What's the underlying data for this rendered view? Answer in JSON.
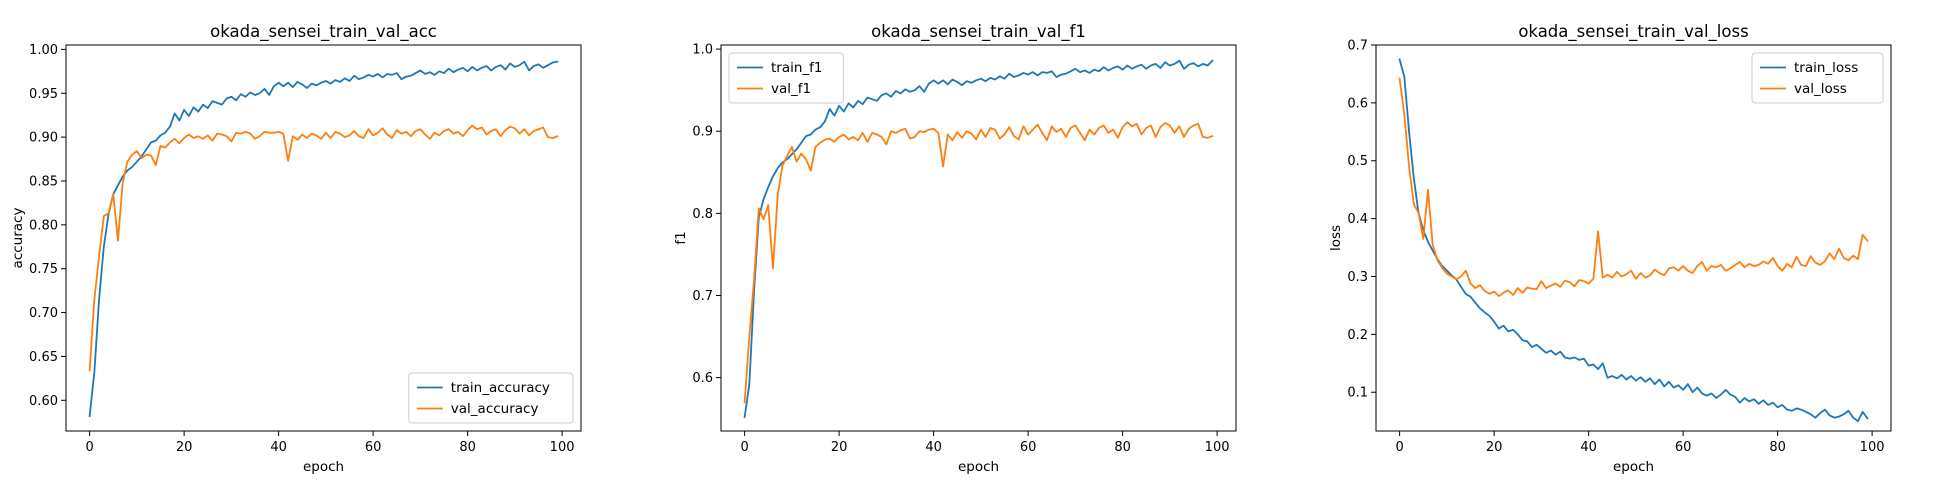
{
  "chart_data": [
    {
      "type": "line",
      "title": "okada_sensei_train_val_acc",
      "xlabel": "epoch",
      "ylabel": "accuracy",
      "xlim": [
        -5,
        104
      ],
      "ylim": [
        0.565,
        1.005
      ],
      "xticks": [
        "0",
        "20",
        "40",
        "60",
        "80",
        "100"
      ],
      "yticks": [
        "0.60",
        "0.65",
        "0.70",
        "0.75",
        "0.80",
        "0.85",
        "0.90",
        "0.95",
        "1.00"
      ],
      "legend_position": "lower-right",
      "grid": false,
      "x": [
        0,
        1,
        2,
        3,
        4,
        5,
        6,
        7,
        8,
        9,
        10,
        11,
        12,
        13,
        14,
        15,
        16,
        17,
        18,
        19,
        20,
        21,
        22,
        23,
        24,
        25,
        26,
        27,
        28,
        29,
        30,
        31,
        32,
        33,
        34,
        35,
        36,
        37,
        38,
        39,
        40,
        41,
        42,
        43,
        44,
        45,
        46,
        47,
        48,
        49,
        50,
        51,
        52,
        53,
        54,
        55,
        56,
        57,
        58,
        59,
        60,
        61,
        62,
        63,
        64,
        65,
        66,
        67,
        68,
        69,
        70,
        71,
        72,
        73,
        74,
        75,
        76,
        77,
        78,
        79,
        80,
        81,
        82,
        83,
        84,
        85,
        86,
        87,
        88,
        89,
        90,
        91,
        92,
        93,
        94,
        95,
        96,
        97,
        98,
        99
      ],
      "series": [
        {
          "name": "train_accuracy",
          "color": "#1f77b4",
          "values": [
            0.582,
            0.632,
            0.715,
            0.775,
            0.812,
            0.835,
            0.845,
            0.855,
            0.862,
            0.866,
            0.872,
            0.878,
            0.886,
            0.894,
            0.896,
            0.902,
            0.905,
            0.912,
            0.927,
            0.919,
            0.931,
            0.924,
            0.934,
            0.929,
            0.937,
            0.933,
            0.941,
            0.939,
            0.937,
            0.944,
            0.946,
            0.942,
            0.949,
            0.946,
            0.951,
            0.948,
            0.95,
            0.955,
            0.948,
            0.958,
            0.962,
            0.958,
            0.962,
            0.957,
            0.963,
            0.96,
            0.956,
            0.961,
            0.959,
            0.962,
            0.964,
            0.961,
            0.965,
            0.963,
            0.967,
            0.964,
            0.97,
            0.966,
            0.968,
            0.971,
            0.969,
            0.972,
            0.968,
            0.972,
            0.971,
            0.973,
            0.966,
            0.969,
            0.97,
            0.973,
            0.976,
            0.972,
            0.974,
            0.971,
            0.975,
            0.973,
            0.978,
            0.974,
            0.977,
            0.979,
            0.975,
            0.98,
            0.976,
            0.979,
            0.981,
            0.976,
            0.98,
            0.982,
            0.977,
            0.984,
            0.98,
            0.982,
            0.986,
            0.976,
            0.981,
            0.983,
            0.979,
            0.982,
            0.985,
            0.986
          ]
        },
        {
          "name": "val_accuracy",
          "color": "#ff7f0e",
          "values": [
            0.634,
            0.715,
            0.764,
            0.81,
            0.813,
            0.835,
            0.782,
            0.848,
            0.872,
            0.88,
            0.884,
            0.876,
            0.88,
            0.879,
            0.868,
            0.89,
            0.888,
            0.894,
            0.898,
            0.893,
            0.899,
            0.903,
            0.899,
            0.901,
            0.898,
            0.902,
            0.896,
            0.904,
            0.903,
            0.901,
            0.895,
            0.905,
            0.904,
            0.906,
            0.904,
            0.898,
            0.901,
            0.906,
            0.905,
            0.905,
            0.906,
            0.904,
            0.873,
            0.901,
            0.897,
            0.903,
            0.899,
            0.904,
            0.902,
            0.898,
            0.905,
            0.899,
            0.906,
            0.904,
            0.9,
            0.902,
            0.907,
            0.901,
            0.899,
            0.909,
            0.902,
            0.905,
            0.91,
            0.903,
            0.899,
            0.908,
            0.904,
            0.906,
            0.901,
            0.907,
            0.909,
            0.903,
            0.898,
            0.905,
            0.902,
            0.907,
            0.909,
            0.904,
            0.906,
            0.901,
            0.908,
            0.913,
            0.909,
            0.911,
            0.903,
            0.907,
            0.909,
            0.901,
            0.908,
            0.912,
            0.91,
            0.904,
            0.909,
            0.902,
            0.907,
            0.909,
            0.911,
            0.9,
            0.899,
            0.901
          ]
        }
      ]
    },
    {
      "type": "line",
      "title": "okada_sensei_train_val_f1",
      "xlabel": "epoch",
      "ylabel": "f1",
      "xlim": [
        -5,
        104
      ],
      "ylim": [
        0.535,
        1.005
      ],
      "xticks": [
        "0",
        "20",
        "40",
        "60",
        "80",
        "100"
      ],
      "yticks": [
        "0.6",
        "0.7",
        "0.8",
        "0.9",
        "1.0"
      ],
      "legend_position": "upper-left",
      "grid": false,
      "x": [
        0,
        1,
        2,
        3,
        4,
        5,
        6,
        7,
        8,
        9,
        10,
        11,
        12,
        13,
        14,
        15,
        16,
        17,
        18,
        19,
        20,
        21,
        22,
        23,
        24,
        25,
        26,
        27,
        28,
        29,
        30,
        31,
        32,
        33,
        34,
        35,
        36,
        37,
        38,
        39,
        40,
        41,
        42,
        43,
        44,
        45,
        46,
        47,
        48,
        49,
        50,
        51,
        52,
        53,
        54,
        55,
        56,
        57,
        58,
        59,
        60,
        61,
        62,
        63,
        64,
        65,
        66,
        67,
        68,
        69,
        70,
        71,
        72,
        73,
        74,
        75,
        76,
        77,
        78,
        79,
        80,
        81,
        82,
        83,
        84,
        85,
        86,
        87,
        88,
        89,
        90,
        91,
        92,
        93,
        94,
        95,
        96,
        97,
        98,
        99
      ],
      "series": [
        {
          "name": "train_f1",
          "color": "#1f77b4",
          "values": [
            0.552,
            0.592,
            0.706,
            0.795,
            0.817,
            0.832,
            0.845,
            0.855,
            0.862,
            0.866,
            0.872,
            0.878,
            0.886,
            0.894,
            0.896,
            0.902,
            0.905,
            0.912,
            0.927,
            0.919,
            0.931,
            0.924,
            0.934,
            0.929,
            0.937,
            0.933,
            0.941,
            0.939,
            0.937,
            0.944,
            0.946,
            0.942,
            0.949,
            0.946,
            0.951,
            0.948,
            0.95,
            0.955,
            0.948,
            0.958,
            0.962,
            0.958,
            0.962,
            0.957,
            0.963,
            0.96,
            0.956,
            0.961,
            0.959,
            0.962,
            0.964,
            0.961,
            0.965,
            0.963,
            0.967,
            0.964,
            0.97,
            0.966,
            0.968,
            0.971,
            0.969,
            0.972,
            0.968,
            0.972,
            0.971,
            0.973,
            0.966,
            0.969,
            0.97,
            0.973,
            0.976,
            0.972,
            0.974,
            0.971,
            0.975,
            0.973,
            0.978,
            0.974,
            0.977,
            0.979,
            0.975,
            0.98,
            0.976,
            0.979,
            0.981,
            0.976,
            0.98,
            0.982,
            0.977,
            0.984,
            0.98,
            0.982,
            0.986,
            0.976,
            0.981,
            0.983,
            0.979,
            0.982,
            0.98,
            0.986
          ]
        },
        {
          "name": "val_f1",
          "color": "#ff7f0e",
          "values": [
            0.57,
            0.65,
            0.72,
            0.806,
            0.793,
            0.81,
            0.733,
            0.822,
            0.858,
            0.87,
            0.881,
            0.863,
            0.873,
            0.866,
            0.852,
            0.881,
            0.886,
            0.89,
            0.891,
            0.887,
            0.893,
            0.896,
            0.89,
            0.893,
            0.889,
            0.898,
            0.887,
            0.898,
            0.896,
            0.893,
            0.884,
            0.9,
            0.898,
            0.901,
            0.903,
            0.891,
            0.893,
            0.9,
            0.899,
            0.902,
            0.903,
            0.898,
            0.857,
            0.896,
            0.889,
            0.899,
            0.892,
            0.9,
            0.897,
            0.89,
            0.902,
            0.893,
            0.904,
            0.902,
            0.891,
            0.896,
            0.905,
            0.894,
            0.89,
            0.906,
            0.896,
            0.902,
            0.908,
            0.898,
            0.889,
            0.906,
            0.899,
            0.903,
            0.893,
            0.904,
            0.907,
            0.898,
            0.889,
            0.902,
            0.896,
            0.904,
            0.907,
            0.898,
            0.902,
            0.892,
            0.905,
            0.911,
            0.906,
            0.909,
            0.896,
            0.904,
            0.907,
            0.893,
            0.905,
            0.91,
            0.907,
            0.898,
            0.906,
            0.893,
            0.903,
            0.907,
            0.909,
            0.893,
            0.892,
            0.894
          ]
        }
      ]
    },
    {
      "type": "line",
      "title": "okada_sensei_train_val_loss",
      "xlabel": "epoch",
      "ylabel": "loss",
      "xlim": [
        -5,
        104
      ],
      "ylim": [
        0.033,
        0.7
      ],
      "xticks": [
        "0",
        "20",
        "40",
        "60",
        "80",
        "100"
      ],
      "yticks": [
        "0.1",
        "0.2",
        "0.3",
        "0.4",
        "0.5",
        "0.6",
        "0.7"
      ],
      "legend_position": "upper-right",
      "grid": false,
      "x": [
        0,
        1,
        2,
        3,
        4,
        5,
        6,
        7,
        8,
        9,
        10,
        11,
        12,
        13,
        14,
        15,
        16,
        17,
        18,
        19,
        20,
        21,
        22,
        23,
        24,
        25,
        26,
        27,
        28,
        29,
        30,
        31,
        32,
        33,
        34,
        35,
        36,
        37,
        38,
        39,
        40,
        41,
        42,
        43,
        44,
        45,
        46,
        47,
        48,
        49,
        50,
        51,
        52,
        53,
        54,
        55,
        56,
        57,
        58,
        59,
        60,
        61,
        62,
        63,
        64,
        65,
        66,
        67,
        68,
        69,
        70,
        71,
        72,
        73,
        74,
        75,
        76,
        77,
        78,
        79,
        80,
        81,
        82,
        83,
        84,
        85,
        86,
        87,
        88,
        89,
        90,
        91,
        92,
        93,
        94,
        95,
        96,
        97,
        98,
        99
      ],
      "series": [
        {
          "name": "train_loss",
          "color": "#1f77b4",
          "values": [
            0.675,
            0.645,
            0.55,
            0.47,
            0.41,
            0.38,
            0.36,
            0.345,
            0.33,
            0.318,
            0.31,
            0.302,
            0.295,
            0.282,
            0.27,
            0.265,
            0.255,
            0.245,
            0.238,
            0.232,
            0.222,
            0.21,
            0.215,
            0.205,
            0.208,
            0.2,
            0.19,
            0.188,
            0.178,
            0.182,
            0.175,
            0.168,
            0.172,
            0.165,
            0.17,
            0.16,
            0.158,
            0.16,
            0.156,
            0.158,
            0.146,
            0.148,
            0.14,
            0.15,
            0.125,
            0.128,
            0.124,
            0.13,
            0.122,
            0.128,
            0.12,
            0.126,
            0.118,
            0.124,
            0.114,
            0.122,
            0.11,
            0.118,
            0.108,
            0.112,
            0.104,
            0.114,
            0.1,
            0.108,
            0.098,
            0.094,
            0.098,
            0.09,
            0.096,
            0.104,
            0.096,
            0.092,
            0.082,
            0.09,
            0.084,
            0.088,
            0.08,
            0.086,
            0.078,
            0.082,
            0.074,
            0.078,
            0.07,
            0.068,
            0.072,
            0.07,
            0.066,
            0.062,
            0.056,
            0.064,
            0.07,
            0.06,
            0.056,
            0.058,
            0.062,
            0.068,
            0.056,
            0.05,
            0.066,
            0.055
          ]
        },
        {
          "name": "val_loss",
          "color": "#ff7f0e",
          "values": [
            0.642,
            0.58,
            0.49,
            0.425,
            0.41,
            0.365,
            0.45,
            0.355,
            0.328,
            0.315,
            0.305,
            0.3,
            0.295,
            0.3,
            0.31,
            0.288,
            0.28,
            0.285,
            0.275,
            0.27,
            0.274,
            0.266,
            0.272,
            0.276,
            0.268,
            0.28,
            0.272,
            0.281,
            0.279,
            0.278,
            0.292,
            0.28,
            0.284,
            0.288,
            0.282,
            0.293,
            0.29,
            0.283,
            0.294,
            0.292,
            0.288,
            0.296,
            0.378,
            0.298,
            0.303,
            0.298,
            0.308,
            0.3,
            0.304,
            0.31,
            0.296,
            0.306,
            0.298,
            0.302,
            0.312,
            0.306,
            0.302,
            0.314,
            0.316,
            0.31,
            0.318,
            0.31,
            0.306,
            0.318,
            0.325,
            0.31,
            0.318,
            0.316,
            0.32,
            0.31,
            0.314,
            0.32,
            0.325,
            0.316,
            0.322,
            0.318,
            0.32,
            0.326,
            0.322,
            0.332,
            0.318,
            0.31,
            0.322,
            0.316,
            0.334,
            0.32,
            0.318,
            0.335,
            0.324,
            0.32,
            0.326,
            0.34,
            0.33,
            0.348,
            0.332,
            0.328,
            0.336,
            0.33,
            0.372,
            0.362
          ]
        }
      ]
    }
  ]
}
